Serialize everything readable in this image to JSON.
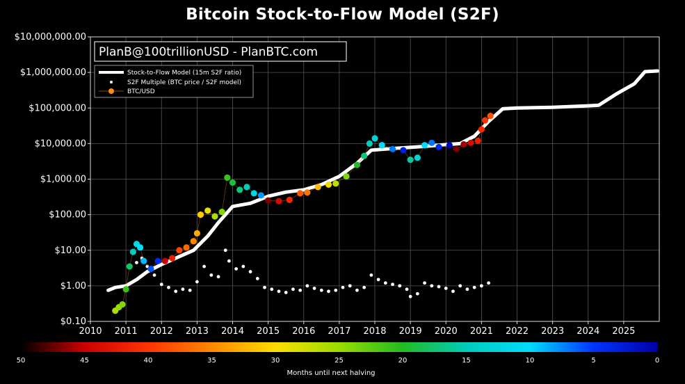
{
  "chart_data": {
    "type": "scatter",
    "title": "Bitcoin Stock-to-Flow Model (S2F)",
    "annotation": "PlanB@100trillionUSD - PlanBTC.com",
    "y_scale": "log",
    "ylim": [
      0.1,
      10000000
    ],
    "xlim": [
      2010,
      2026
    ],
    "grid": true,
    "legend_position": "top-left",
    "y_ticks": [
      {
        "value": 0.1,
        "label": "$0.10"
      },
      {
        "value": 1,
        "label": "$1.00"
      },
      {
        "value": 10,
        "label": "$10.00"
      },
      {
        "value": 100,
        "label": "$100.00"
      },
      {
        "value": 1000,
        "label": "$1,000.00"
      },
      {
        "value": 10000,
        "label": "$10,000.00"
      },
      {
        "value": 100000,
        "label": "$100,000.00"
      },
      {
        "value": 1000000,
        "label": "$1,000,000.00"
      },
      {
        "value": 10000000,
        "label": "$10,000,000.00"
      }
    ],
    "x_ticks": [
      {
        "value": 2010,
        "label": "2010"
      },
      {
        "value": 2011,
        "label": "2011"
      },
      {
        "value": 2012,
        "label": "2012"
      },
      {
        "value": 2013,
        "label": "2013"
      },
      {
        "value": 2014,
        "label": "2014"
      },
      {
        "value": 2015,
        "label": "2015"
      },
      {
        "value": 2016,
        "label": "2016"
      },
      {
        "value": 2017,
        "label": "2017"
      },
      {
        "value": 2018,
        "label": "2018"
      },
      {
        "value": 2019,
        "label": "2019"
      },
      {
        "value": 2020,
        "label": "2020"
      },
      {
        "value": 2021,
        "label": "2021"
      },
      {
        "value": 2022,
        "label": "2022"
      },
      {
        "value": 2023,
        "label": "2023"
      },
      {
        "value": 2024,
        "label": "2024"
      },
      {
        "value": 2025,
        "label": "2025"
      }
    ],
    "halvings": [
      2012.9,
      2016.5,
      2020.4,
      2024.3
    ],
    "series": [
      {
        "name": "Stock-to-Flow Model (15m S2F ratio)",
        "style": "line",
        "color": "#ffffff",
        "x": [
          2010.5,
          2010.7,
          2011.0,
          2011.3,
          2011.6,
          2012.0,
          2012.4,
          2012.9,
          2013.3,
          2013.6,
          2014.0,
          2014.5,
          2015.0,
          2015.5,
          2016.0,
          2016.5,
          2017.0,
          2017.5,
          2017.9,
          2018.3,
          2018.8,
          2019.3,
          2019.8,
          2020.4,
          2020.8,
          2021.2,
          2021.6,
          2022.0,
          2023.0,
          2024.0,
          2024.3,
          2024.8,
          2025.3,
          2025.6,
          2025.95
        ],
        "y": [
          0.75,
          0.9,
          1.0,
          1.5,
          2.5,
          4.0,
          6.0,
          10,
          25,
          60,
          170,
          210,
          330,
          430,
          500,
          700,
          1200,
          2800,
          6500,
          7000,
          7600,
          8200,
          9000,
          10000,
          16000,
          42000,
          95000,
          100000,
          105000,
          115000,
          120000,
          250000,
          480000,
          1050000,
          1100000
        ]
      },
      {
        "name": "S2F Multiple (BTC price / S2F model)",
        "style": "dots",
        "color": "#ffffff",
        "x": [
          2011.3,
          2011.45,
          2011.6,
          2011.8,
          2012.0,
          2012.2,
          2012.4,
          2012.6,
          2012.8,
          2013.0,
          2013.2,
          2013.4,
          2013.6,
          2013.8,
          2013.9,
          2014.1,
          2014.3,
          2014.5,
          2014.7,
          2014.9,
          2015.1,
          2015.3,
          2015.5,
          2015.7,
          2015.9,
          2016.1,
          2016.3,
          2016.5,
          2016.7,
          2016.9,
          2017.1,
          2017.3,
          2017.5,
          2017.7,
          2017.9,
          2018.1,
          2018.3,
          2018.5,
          2018.7,
          2018.9,
          2019.0,
          2019.2,
          2019.4,
          2019.6,
          2019.8,
          2020.0,
          2020.2,
          2020.4,
          2020.6,
          2020.8,
          2021.0,
          2021.2
        ],
        "y": [
          4.5,
          6,
          3.5,
          2,
          1.1,
          0.9,
          0.7,
          0.8,
          0.75,
          1.3,
          3.5,
          2.0,
          1.8,
          10,
          5,
          3,
          3.5,
          2.5,
          1.6,
          0.9,
          0.8,
          0.7,
          0.65,
          0.8,
          0.75,
          1.0,
          0.85,
          0.75,
          0.7,
          0.75,
          0.9,
          1.0,
          0.75,
          0.9,
          2.0,
          1.5,
          1.2,
          1.1,
          1.0,
          0.8,
          0.5,
          0.6,
          1.2,
          1.0,
          0.95,
          0.85,
          0.7,
          1.0,
          0.8,
          0.9,
          1.0,
          1.2
        ]
      },
      {
        "name": "BTC/USD",
        "style": "colored-dots",
        "color": "#ff8c1a",
        "x": [
          2010.7,
          2010.8,
          2010.9,
          2011.0,
          2011.1,
          2011.2,
          2011.3,
          2011.4,
          2011.5,
          2011.7,
          2011.9,
          2012.1,
          2012.3,
          2012.5,
          2012.7,
          2012.9,
          2013.0,
          2013.1,
          2013.3,
          2013.5,
          2013.7,
          2013.85,
          2014.0,
          2014.2,
          2014.4,
          2014.6,
          2014.8,
          2015.0,
          2015.3,
          2015.6,
          2015.9,
          2016.1,
          2016.4,
          2016.7,
          2016.9,
          2017.2,
          2017.5,
          2017.7,
          2017.85,
          2018.0,
          2018.2,
          2018.5,
          2018.8,
          2019.0,
          2019.2,
          2019.4,
          2019.6,
          2019.8,
          2020.1,
          2020.3,
          2020.5,
          2020.7,
          2020.9,
          2021.0,
          2021.1,
          2021.25
        ],
        "y": [
          0.2,
          0.25,
          0.3,
          0.8,
          3.5,
          9,
          15,
          12,
          5,
          3,
          5,
          5,
          6,
          10,
          12,
          18,
          30,
          100,
          130,
          90,
          120,
          1100,
          800,
          500,
          600,
          400,
          350,
          250,
          240,
          260,
          400,
          420,
          600,
          700,
          750,
          1200,
          2500,
          4500,
          10000,
          14000,
          9000,
          7000,
          6500,
          3500,
          4000,
          9000,
          10500,
          8000,
          9000,
          7000,
          9500,
          10500,
          12000,
          25000,
          45000,
          60000
        ],
        "months_until_halving": [
          26,
          25,
          24,
          21,
          18,
          15,
          12,
          10,
          9,
          6,
          4,
          45,
          42,
          39,
          37,
          35,
          33,
          31,
          29,
          26,
          24,
          21,
          19,
          17,
          15,
          12,
          8,
          47,
          44,
          41,
          38,
          36,
          32,
          29,
          27,
          24,
          20,
          17,
          15,
          13,
          10,
          7,
          3,
          16,
          13,
          10,
          7,
          4,
          1,
          47,
          46,
          44,
          42,
          41,
          40,
          38
        ]
      }
    ],
    "colorbar": {
      "label": "Months until next halving",
      "ticks": [
        {
          "value": 50,
          "label": "50"
        },
        {
          "value": 45,
          "label": "45"
        },
        {
          "value": 40,
          "label": "40"
        },
        {
          "value": 35,
          "label": "35"
        },
        {
          "value": 30,
          "label": "30"
        },
        {
          "value": 25,
          "label": "25"
        },
        {
          "value": 20,
          "label": "20"
        },
        {
          "value": 15,
          "label": "15"
        },
        {
          "value": 10,
          "label": "10"
        },
        {
          "value": 5,
          "label": "5"
        },
        {
          "value": 0,
          "label": "0"
        }
      ],
      "colors": [
        "#000000",
        "#cc0000",
        "#ff3300",
        "#ff8800",
        "#ffdd00",
        "#99dd00",
        "#22bb22",
        "#00ccbb",
        "#00ddff",
        "#0033ff",
        "#0000aa"
      ]
    }
  }
}
